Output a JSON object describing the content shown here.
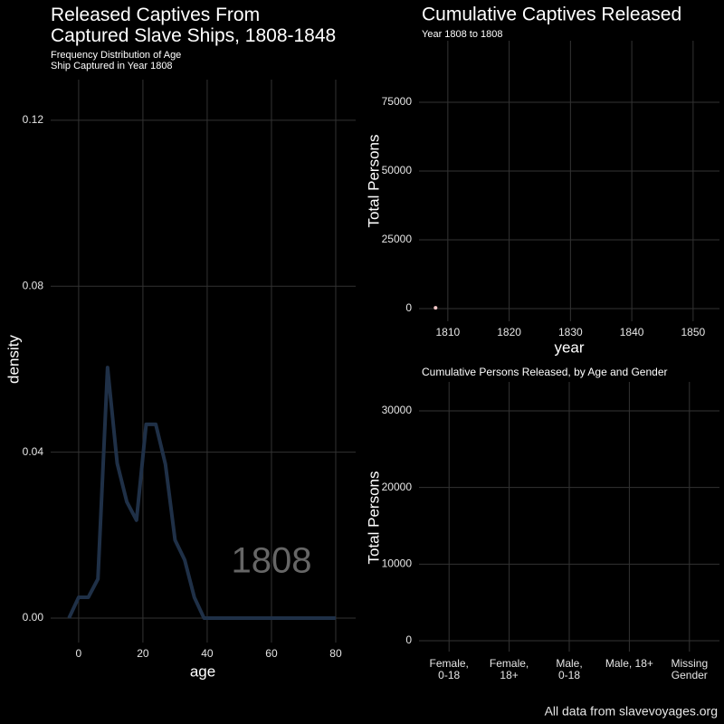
{
  "chart_data": [
    {
      "type": "line",
      "title": "Released Captives From\nCaptured Slave Ships, 1808-1848",
      "subtitle": "Frequency Distribution of Age\nShip Captured in Year 1808",
      "x_label": "age",
      "y_label": "density",
      "annotation": "1808",
      "x": [
        -3,
        0,
        3,
        6,
        9,
        12,
        15,
        18,
        21,
        24,
        27,
        30,
        33,
        36,
        39,
        80
      ],
      "values": [
        0,
        0.005,
        0.005,
        0.0094,
        0.0604,
        0.0373,
        0.028,
        0.0236,
        0.0467,
        0.0467,
        0.0371,
        0.0188,
        0.014,
        0.005,
        0,
        0
      ],
      "color": "#1f3047",
      "xlim": [
        -8.7,
        86.2
      ],
      "xticks": [
        0,
        20,
        40,
        60,
        80
      ],
      "ylim": [
        -0.0059,
        0.1298
      ],
      "yticks": [
        {
          "value": 0,
          "label": "0.00"
        },
        {
          "value": 0.04,
          "label": "0.04"
        },
        {
          "value": 0.08,
          "label": "0.08"
        },
        {
          "value": 0.12,
          "label": "0.12"
        }
      ],
      "grid": true
    },
    {
      "type": "scatter",
      "title": "Cumulative Captives Released",
      "subtitle": "Year 1808 to 1808",
      "x_label": "year",
      "y_label": "Total Persons",
      "x": [
        1808
      ],
      "values": [
        300
      ],
      "color": "#f4c6c6",
      "xlim": [
        1805.3,
        1854.3
      ],
      "xticks": [
        1810,
        1820,
        1830,
        1840,
        1850
      ],
      "ylim": [
        -4600,
        97370
      ],
      "yticks": [
        0,
        25000,
        50000,
        75000
      ],
      "grid": true
    },
    {
      "type": "bar",
      "title": "Cumulative Persons Released, by Age and Gender",
      "y_label": "Total Persons",
      "categories": [
        "Female,\n0-18",
        "Female,\n18+",
        "Male,\n0-18",
        "Male, 18+",
        "Missing\nGender"
      ],
      "values": [
        0,
        0,
        0,
        0,
        0
      ],
      "color": "#1f3047",
      "ylim": [
        -1417,
        33780
      ],
      "yticks": [
        0,
        10000,
        20000,
        30000
      ],
      "grid": true
    }
  ],
  "caption": "All data from slavevoyages.org"
}
